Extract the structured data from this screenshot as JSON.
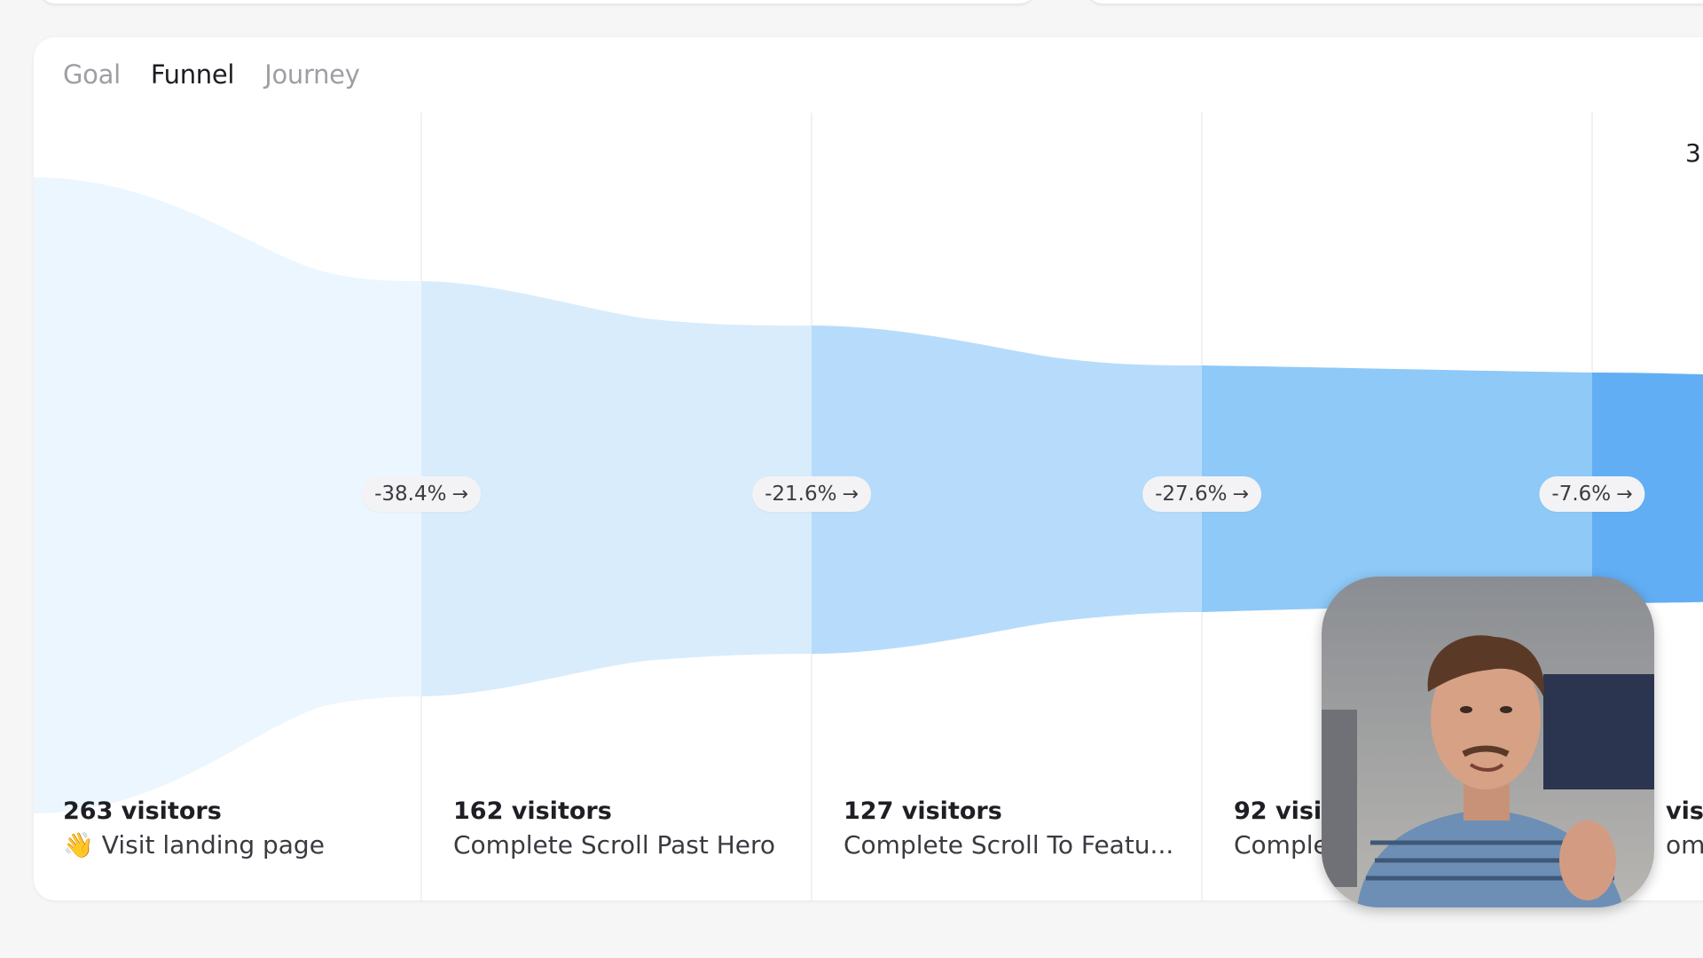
{
  "tabs": [
    {
      "label": "Goal",
      "active": false
    },
    {
      "label": "Funnel",
      "active": true
    },
    {
      "label": "Journey",
      "active": false
    }
  ],
  "funnel": {
    "right_edge_number": "3",
    "drops": [
      "-38.4%",
      "-21.6%",
      "-27.6%",
      "-7.6%"
    ],
    "steps": [
      {
        "count": "263 visitors",
        "icon": "waving-hand-icon",
        "emoji": "👋",
        "label": "Visit landing page"
      },
      {
        "count": "162 visitors",
        "label": "Complete Scroll Past Hero"
      },
      {
        "count": "127 visitors",
        "label": "Complete Scroll To Featu..."
      },
      {
        "count": "92 visit",
        "label": "Comple"
      },
      {
        "count": "visi",
        "label": "ompl"
      }
    ],
    "colors": [
      "#ecf6fe",
      "#d8ecfc",
      "#b7dcfb",
      "#8ec9f8",
      "#62aef4"
    ]
  },
  "webcam": {
    "icon": "presenter-webcam"
  }
}
